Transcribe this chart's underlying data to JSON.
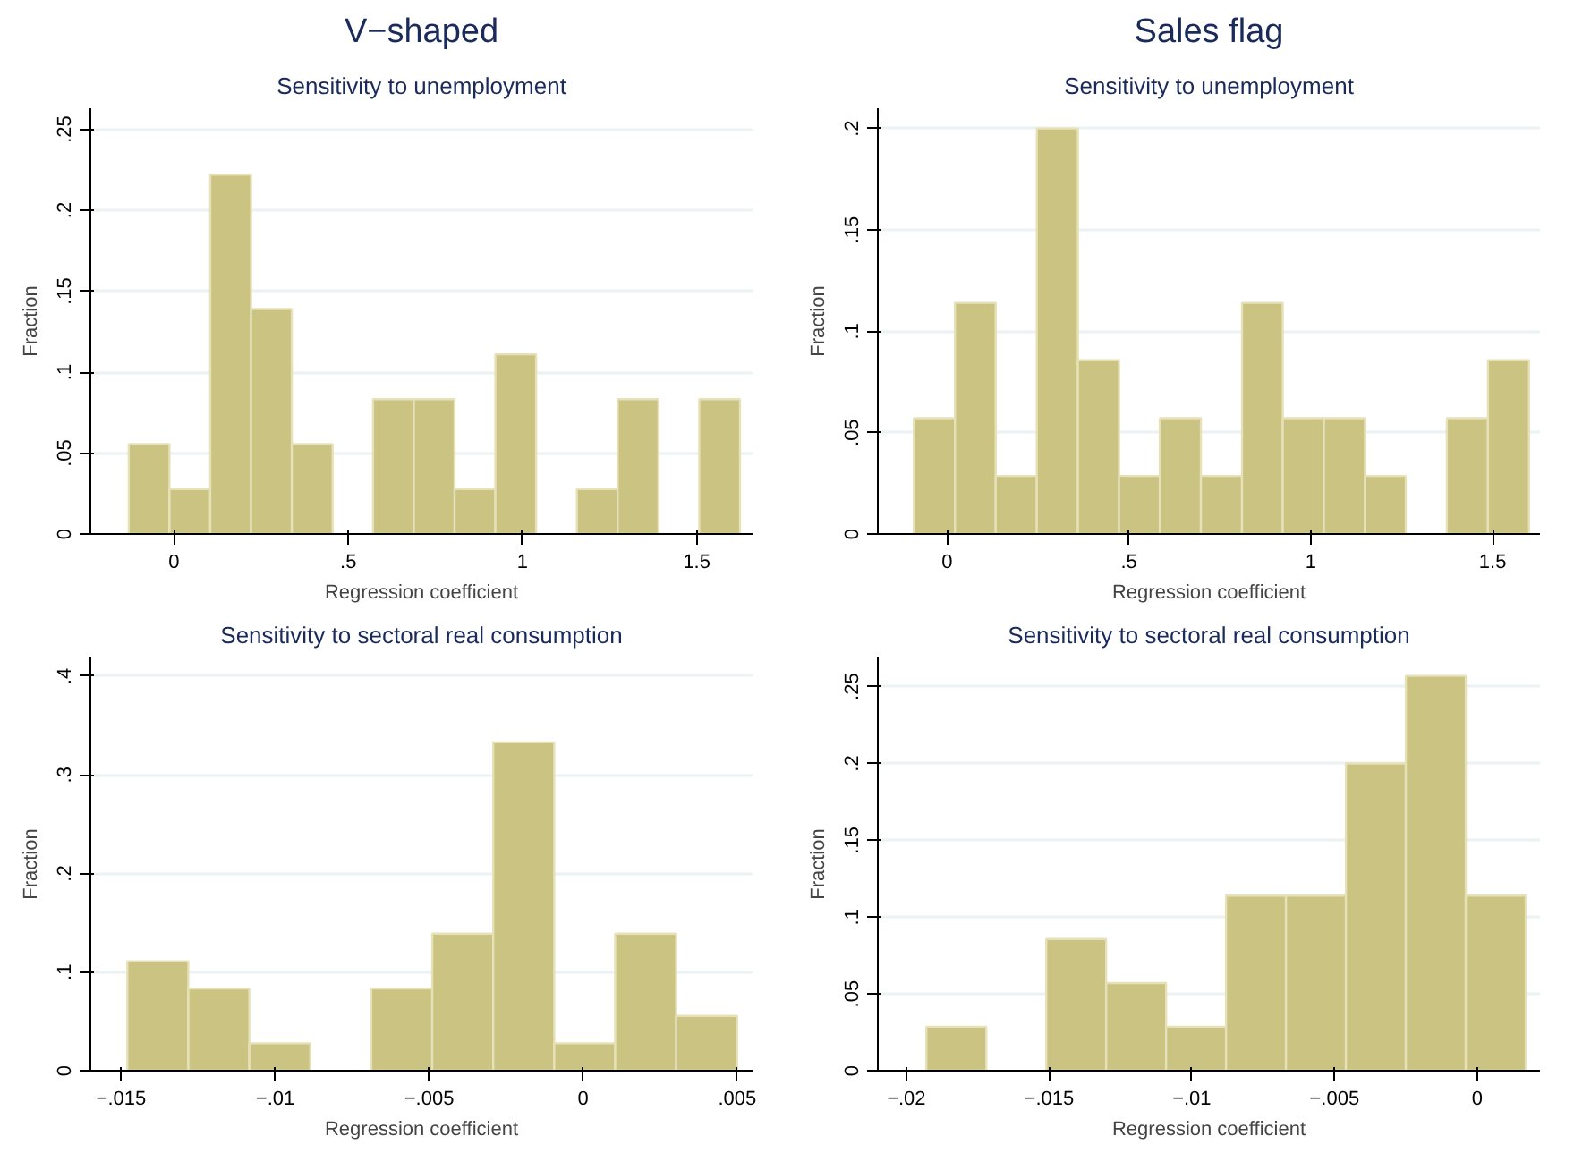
{
  "chart_data": [
    {
      "type": "histogram",
      "title": "V−shaped",
      "subtitle": "Sensitivity to unemployment",
      "xlabel": "Regression coefficient",
      "ylabel": "Fraction",
      "color": "#cbc382",
      "bins": [
        -0.13,
        -0.013,
        0.104,
        0.221,
        0.338,
        0.455,
        0.571,
        0.688,
        0.805,
        0.922,
        1.039,
        1.156,
        1.273,
        1.39,
        1.507,
        1.624
      ],
      "values": [
        0.0556,
        0.0278,
        0.222,
        0.139,
        0.0556,
        0,
        0.0833,
        0.0833,
        0.0278,
        0.111,
        0,
        0.0278,
        0.0833,
        0,
        0.0833
      ],
      "xlim": [
        -0.24,
        1.66
      ],
      "ylim": [
        0,
        0.263
      ],
      "xticks": [
        0,
        {
          "value": 0.5,
          "label": ".5"
        },
        1,
        1.5
      ],
      "yticks": [
        0,
        {
          "value": 0.05,
          "label": ".05"
        },
        {
          "value": 0.1,
          "label": ".1"
        },
        {
          "value": 0.15,
          "label": ".15"
        },
        {
          "value": 0.2,
          "label": ".2"
        },
        {
          "value": 0.25,
          "label": ".25"
        }
      ],
      "grid": "y"
    },
    {
      "type": "histogram",
      "title": "Sales flag",
      "subtitle": "Sensitivity to unemployment",
      "xlabel": "Regression coefficient",
      "ylabel": "Fraction",
      "color": "#cbc382",
      "bins": [
        -0.091,
        0.022,
        0.134,
        0.247,
        0.36,
        0.473,
        0.585,
        0.698,
        0.811,
        0.923,
        1.036,
        1.149,
        1.261,
        1.374,
        1.487,
        1.6
      ],
      "values": [
        0.0571,
        0.114,
        0.0286,
        0.2,
        0.0857,
        0.0286,
        0.0571,
        0.0286,
        0.114,
        0.0571,
        0.0571,
        0.0286,
        0,
        0.0571,
        0.0857
      ],
      "xlim": [
        -0.19,
        1.63
      ],
      "ylim": [
        0,
        0.21
      ],
      "xticks": [
        0,
        {
          "value": 0.5,
          "label": ".5"
        },
        1,
        1.5
      ],
      "yticks": [
        0,
        {
          "value": 0.05,
          "label": ".05"
        },
        {
          "value": 0.1,
          "label": ".1"
        },
        {
          "value": 0.15,
          "label": ".15"
        },
        {
          "value": 0.2,
          "label": ".2"
        }
      ],
      "grid": "y"
    },
    {
      "type": "histogram",
      "subtitle": "Sensitivity to sectoral real consumption",
      "xlabel": "Regression coefficient",
      "ylabel": "Fraction",
      "color": "#cbc382",
      "bins": [
        -0.0148,
        -0.01282,
        -0.01084,
        -0.00886,
        -0.00688,
        -0.0049,
        -0.00292,
        -0.00094,
        0.00104,
        0.00302,
        0.005
      ],
      "values": [
        0.111,
        0.0833,
        0.0278,
        0,
        0.0833,
        0.139,
        0.333,
        0.0278,
        0.139,
        0.0556
      ],
      "xlim": [
        -0.016,
        0.0055
      ],
      "ylim": [
        0,
        0.419
      ],
      "xticks": [
        {
          "value": -0.015,
          "label": "−.015"
        },
        {
          "value": -0.01,
          "label": "−.01"
        },
        {
          "value": -0.005,
          "label": "−.005"
        },
        0,
        {
          "value": 0.005,
          "label": ".005"
        }
      ],
      "yticks": [
        0,
        {
          "value": 0.1,
          "label": ".1"
        },
        {
          "value": 0.2,
          "label": ".2"
        },
        {
          "value": 0.3,
          "label": ".3"
        },
        {
          "value": 0.4,
          "label": ".4"
        }
      ],
      "grid": "y"
    },
    {
      "type": "histogram",
      "subtitle": "Sensitivity to sectoral real consumption",
      "xlabel": "Regression coefficient",
      "ylabel": "Fraction",
      "color": "#cbc382",
      "bins": [
        -0.0193,
        -0.0172,
        -0.0151,
        -0.013,
        -0.0109,
        -0.0088,
        -0.0067,
        -0.0046,
        -0.0025,
        -0.0004,
        0.0017
      ],
      "values": [
        0.0286,
        0,
        0.0857,
        0.0571,
        0.0286,
        0.114,
        0.114,
        0.2,
        0.257,
        0.114
      ],
      "xlim": [
        -0.021,
        0.0022
      ],
      "ylim": [
        0,
        0.269
      ],
      "xticks": [
        {
          "value": -0.02,
          "label": "−.02"
        },
        {
          "value": -0.015,
          "label": "−.015"
        },
        {
          "value": -0.01,
          "label": "−.01"
        },
        {
          "value": -0.005,
          "label": "−.005"
        },
        0
      ],
      "yticks": [
        0,
        {
          "value": 0.05,
          "label": ".05"
        },
        {
          "value": 0.1,
          "label": ".1"
        },
        {
          "value": 0.15,
          "label": ".15"
        },
        {
          "value": 0.2,
          "label": ".2"
        },
        {
          "value": 0.25,
          "label": ".25"
        }
      ],
      "grid": "y"
    }
  ]
}
